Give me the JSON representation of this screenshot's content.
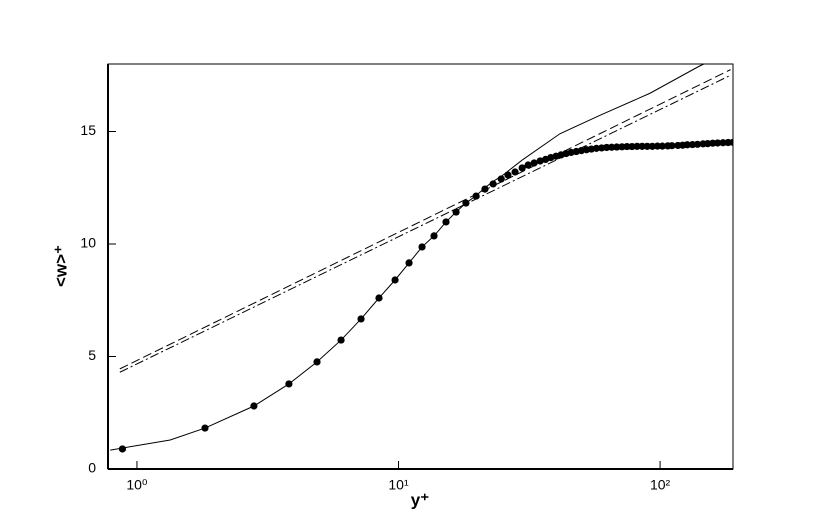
{
  "chart_data": {
    "type": "line",
    "xlabel": "y⁺",
    "ylabel": "<w>⁺",
    "xscale": "log",
    "grid": false,
    "xlim": [
      0.775,
      190
    ],
    "ylim": [
      0,
      18
    ],
    "xticks": [
      {
        "value": 1,
        "label": "10⁰"
      },
      {
        "value": 10,
        "label": "10¹"
      },
      {
        "value": 100,
        "label": "10²"
      }
    ],
    "yticks": [
      0,
      5,
      10,
      15
    ],
    "series": [
      {
        "style": "solid",
        "color": "#000000",
        "x": [
          0.79,
          1.34,
          1.82,
          2.8,
          3.81,
          4.88,
          6.03,
          7.19,
          8.42,
          9.7,
          10.97,
          12.3,
          13.67,
          15.19,
          16.6,
          18.1,
          19.8,
          21.4,
          23,
          25,
          29.7,
          41.4,
          59.2,
          91.5,
          141,
          147
        ],
        "values": [
          0.84,
          1.29,
          1.82,
          2.8,
          3.78,
          4.76,
          5.73,
          6.67,
          7.6,
          8.4,
          9.16,
          9.87,
          10.36,
          10.98,
          11.42,
          11.82,
          12.15,
          12.5,
          12.78,
          13.05,
          13.73,
          14.9,
          15.73,
          16.7,
          17.9,
          18
        ]
      },
      {
        "style": "dashed",
        "color": "#000000",
        "x": [
          0.86,
          186
        ],
        "values": [
          4.45,
          17.75
        ]
      },
      {
        "style": "dashdot",
        "color": "#000000",
        "x": [
          0.86,
          186
        ],
        "values": [
          4.3,
          17.5
        ]
      },
      {
        "style": "markers",
        "marker": "circle",
        "color": "#000000",
        "x": [
          0.88,
          1.82,
          2.8,
          3.81,
          4.88,
          6.03,
          7.19,
          8.42,
          9.7,
          10.97,
          12.3,
          13.67,
          15.19,
          16.6,
          18.1,
          19.8,
          21.4,
          23,
          24.7,
          26.2,
          27.9,
          29.7,
          31.3,
          33,
          34.8,
          36.5,
          38.2,
          40,
          41.8,
          43.7,
          45.7,
          47.8,
          50,
          52.3,
          54.6,
          57.1,
          59.8,
          62.5,
          65.3,
          68.3,
          71.5,
          74.7,
          78.1,
          81.7,
          85.4,
          89.3,
          93.4,
          97.7,
          102,
          107,
          111,
          117,
          122,
          127,
          133,
          139,
          146,
          152,
          159,
          166,
          174,
          182,
          190
        ],
        "values": [
          0.89,
          1.82,
          2.8,
          3.78,
          4.76,
          5.73,
          6.67,
          7.6,
          8.4,
          9.16,
          9.87,
          10.36,
          10.98,
          11.42,
          11.82,
          12.13,
          12.44,
          12.67,
          12.89,
          13.07,
          13.2,
          13.38,
          13.51,
          13.6,
          13.69,
          13.76,
          13.84,
          13.9,
          13.96,
          14.02,
          14.07,
          14.11,
          14.15,
          14.19,
          14.22,
          14.25,
          14.27,
          14.29,
          14.3,
          14.31,
          14.32,
          14.33,
          14.33,
          14.34,
          14.34,
          14.34,
          14.34,
          14.35,
          14.35,
          14.36,
          14.37,
          14.38,
          14.39,
          14.41,
          14.42,
          14.43,
          14.45,
          14.46,
          14.48,
          14.49,
          14.5,
          14.51,
          14.52
        ]
      }
    ]
  }
}
